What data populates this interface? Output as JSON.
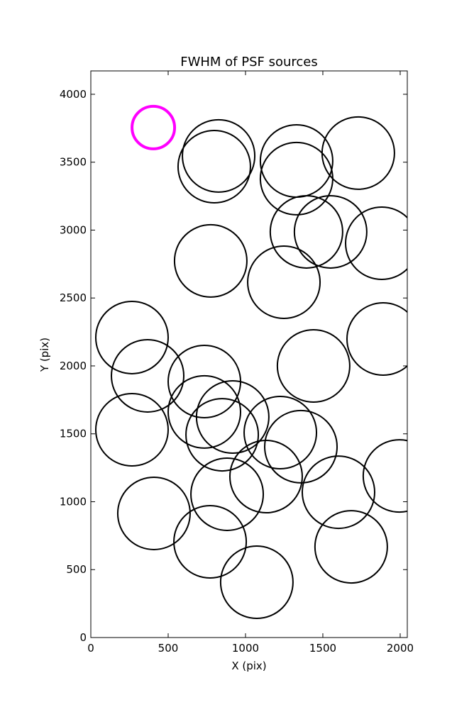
{
  "chart_data": {
    "type": "scatter",
    "title": "FWHM of PSF sources",
    "x_label": "X (pix)",
    "y_label": "Y (pix)",
    "xlim": [
      0,
      2046
    ],
    "ylim": [
      0,
      4172
    ],
    "xticks": [
      0,
      500,
      1000,
      1500,
      2000
    ],
    "yticks": [
      0,
      500,
      1000,
      1500,
      2000,
      2500,
      3000,
      3500,
      4000
    ],
    "series": [
      {
        "color": "#000000",
        "x": [
          826,
          798,
          1330,
          1330,
          1729,
          1394,
          1550,
          1881,
          775,
          1248,
          266,
          1890,
          367,
          734,
          1440,
          734,
          917,
          266,
          849,
          1225,
          1358,
          1133,
          1601,
          881,
          1995,
          408,
          771,
          1683,
          1073
        ],
        "values": [
          3546,
          3467,
          3509,
          3379,
          3567,
          2987,
          2987,
          2903,
          2773,
          2616,
          2209,
          2198,
          1927,
          1885,
          2000,
          1661,
          1624,
          1530,
          1493,
          1509,
          1405,
          1185,
          1070,
          1055,
          1190,
          914,
          705,
          668,
          407
        ]
      },
      {
        "color": "#ff00ff",
        "x": [
          404
        ],
        "values": [
          3755
        ]
      }
    ]
  }
}
